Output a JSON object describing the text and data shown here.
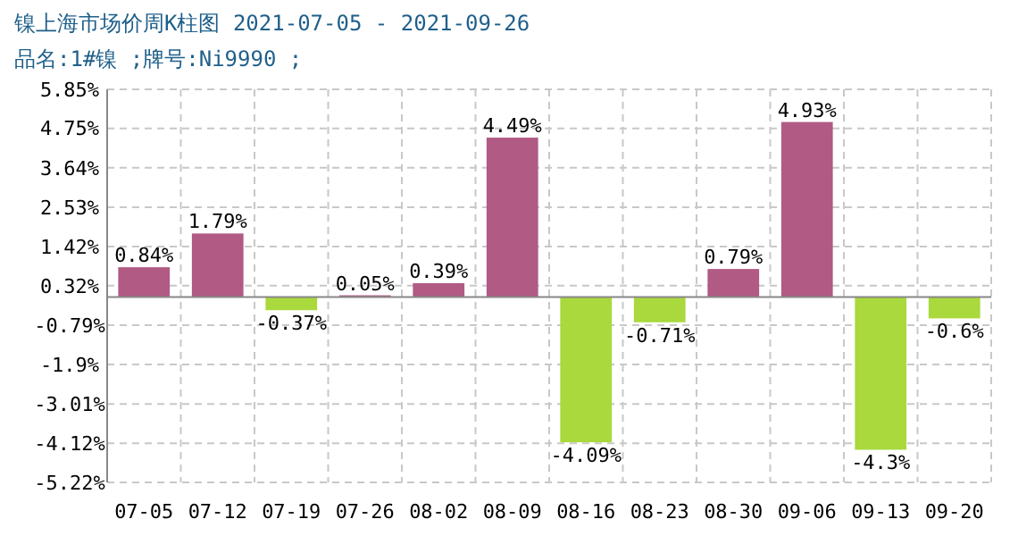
{
  "chart_data": {
    "type": "bar",
    "title": "镍上海市场价周K柱图  2021-07-05 - 2021-09-26",
    "subtitle": "品名:1#镍 ;牌号:Ni9990 ;",
    "categories": [
      "07-05",
      "07-12",
      "07-19",
      "07-26",
      "08-02",
      "08-09",
      "08-16",
      "08-23",
      "08-30",
      "09-06",
      "09-13",
      "09-20"
    ],
    "values": [
      0.84,
      1.79,
      -0.37,
      0.05,
      0.39,
      4.49,
      -4.09,
      -0.71,
      0.79,
      4.93,
      -4.3,
      -0.6
    ],
    "value_labels": [
      "0.84%",
      "1.79%",
      "-0.37%",
      "0.05%",
      "0.39%",
      "4.49%",
      "-4.09%",
      "-0.71%",
      "0.79%",
      "4.93%",
      "-4.3%",
      "-0.6%"
    ],
    "colors": [
      "#b05a84",
      "#b05a84",
      "#a9d93c",
      "#b05a84",
      "#b05a84",
      "#b05a84",
      "#a9d93c",
      "#a9d93c",
      "#b05a84",
      "#b05a84",
      "#a9d93c",
      "#a9d93c"
    ],
    "ylim": [
      -5.22,
      5.85
    ],
    "yticks": [
      {
        "value": 5.85,
        "label": "5.85%"
      },
      {
        "value": 4.75,
        "label": "4.75%"
      },
      {
        "value": 3.64,
        "label": "3.64%"
      },
      {
        "value": 2.53,
        "label": "2.53%"
      },
      {
        "value": 1.42,
        "label": "1.42%"
      },
      {
        "value": 0.32,
        "label": "0.32%"
      },
      {
        "value": -0.79,
        "label": "-0.79%"
      },
      {
        "value": -1.9,
        "label": "-1.9%"
      },
      {
        "value": -3.01,
        "label": "-3.01%"
      },
      {
        "value": -4.12,
        "label": "-4.12%"
      },
      {
        "value": -5.22,
        "label": "-5.22%"
      }
    ],
    "grid": true
  }
}
